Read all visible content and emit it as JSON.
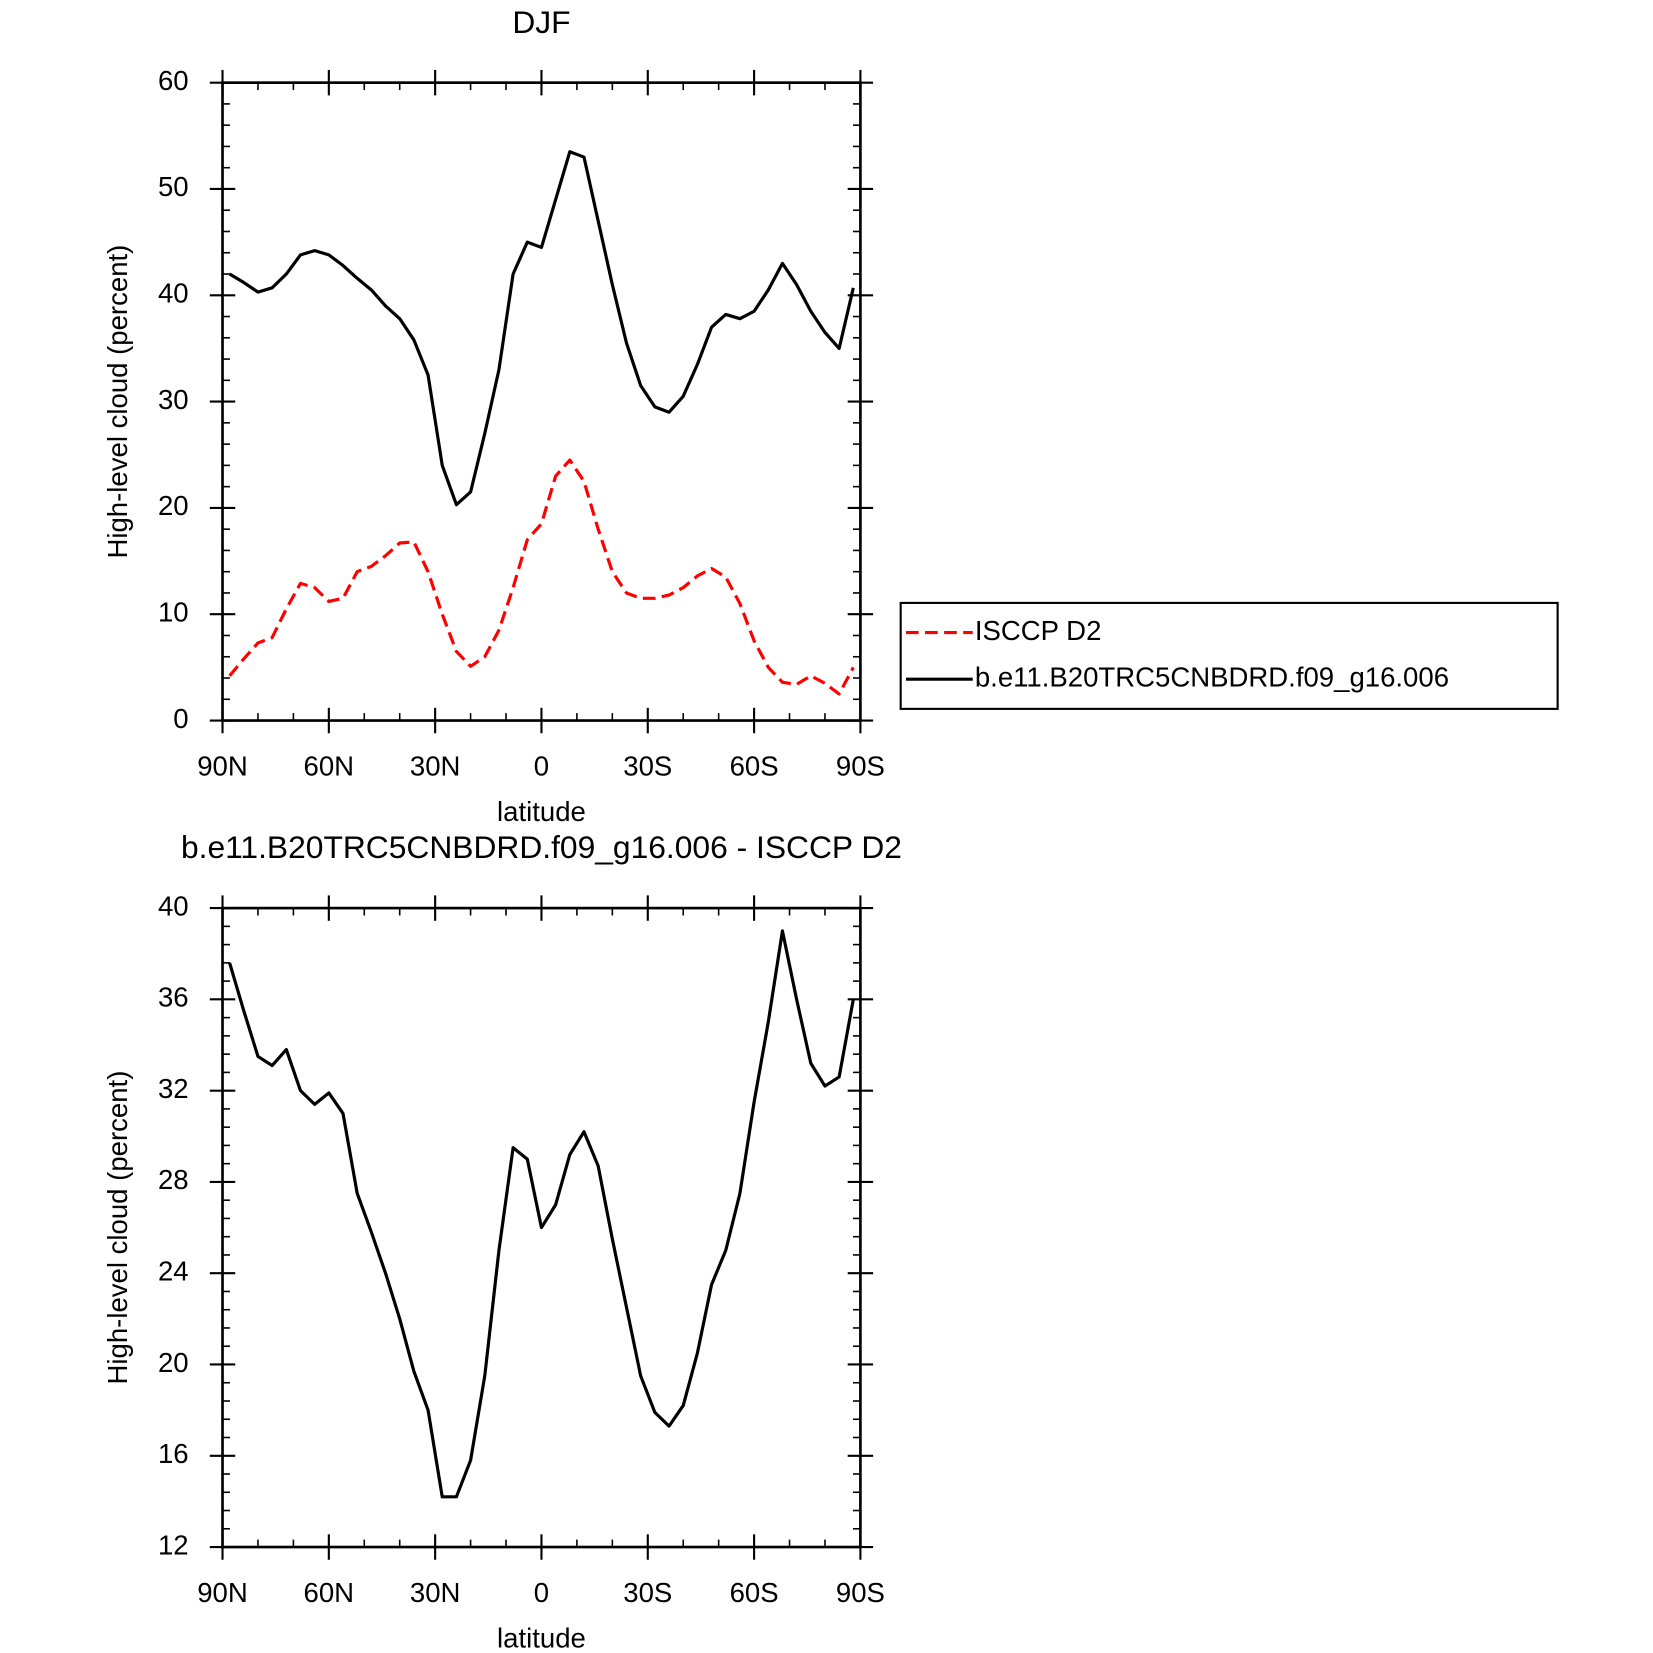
{
  "chart_data": [
    {
      "type": "line",
      "title": "DJF",
      "xlabel": "latitude",
      "ylabel": "High-level cloud (percent)",
      "x": [
        88,
        84,
        80,
        76,
        72,
        68,
        64,
        60,
        56,
        52,
        48,
        44,
        40,
        36,
        32,
        28,
        24,
        20,
        16,
        12,
        8,
        4,
        0,
        -4,
        -8,
        -12,
        -16,
        -20,
        -24,
        -28,
        -32,
        -36,
        -40,
        -44,
        -48,
        -52,
        -56,
        -60,
        -64,
        -68,
        -72,
        -76,
        -80,
        -84,
        -88
      ],
      "series": [
        {
          "name": "ISCCP D2",
          "color": "#ff0000",
          "dashed": true,
          "values": [
            4.2,
            5.8,
            7.3,
            7.8,
            10.5,
            12.9,
            12.5,
            11.2,
            11.5,
            14,
            14.5,
            15.5,
            16.7,
            16.8,
            14,
            10,
            6.5,
            5.1,
            6,
            8.5,
            12.5,
            17,
            18.5,
            23,
            24.5,
            22.5,
            18,
            14,
            12,
            11.5,
            11.5,
            11.8,
            12.5,
            13.6,
            14.3,
            13.5,
            11,
            7.5,
            5,
            3.6,
            3.4,
            4.2,
            3.5,
            2.5,
            5
          ]
        },
        {
          "name": "b.e11.B20TRC5CNBDRD.f09_g16.006",
          "color": "#000000",
          "dashed": false,
          "values": [
            42,
            41.2,
            40.3,
            40.7,
            42,
            43.8,
            44.2,
            43.8,
            42.8,
            41.6,
            40.5,
            39,
            37.8,
            35.8,
            32.5,
            24,
            20.3,
            21.5,
            27,
            33,
            42,
            45,
            44.5,
            49,
            53.5,
            53,
            47,
            41,
            35.5,
            31.5,
            29.5,
            29,
            30.5,
            33.5,
            37,
            38.2,
            37.8,
            38.5,
            40.5,
            43,
            41,
            38.5,
            36.5,
            35,
            40.7
          ]
        }
      ],
      "xlim": [
        90,
        -90
      ],
      "xticks": [
        {
          "value": 90,
          "label": "90N"
        },
        {
          "value": 60,
          "label": "60N"
        },
        {
          "value": 30,
          "label": "30N"
        },
        0,
        {
          "value": -30,
          "label": "30S"
        },
        {
          "value": -60,
          "label": "60S"
        },
        {
          "value": -90,
          "label": "90S"
        }
      ],
      "ylim": [
        0,
        60
      ],
      "yticks": [
        0,
        10,
        20,
        30,
        40,
        50,
        60
      ],
      "legend": "right"
    },
    {
      "type": "line",
      "title": "b.e11.B20TRC5CNBDRD.f09_g16.006 - ISCCP D2",
      "xlabel": "latitude",
      "ylabel": "High-level cloud (percent)",
      "x": [
        88,
        84,
        80,
        76,
        72,
        68,
        64,
        60,
        56,
        52,
        48,
        44,
        40,
        36,
        32,
        28,
        24,
        20,
        16,
        12,
        8,
        4,
        0,
        -4,
        -8,
        -12,
        -16,
        -20,
        -24,
        -28,
        -32,
        -36,
        -40,
        -44,
        -48,
        -52,
        -56,
        -60,
        -64,
        -68,
        -72,
        -76,
        -80,
        -84,
        -88
      ],
      "series": [
        {
          "color": "#000000",
          "dashed": false,
          "values": [
            37.6,
            35.5,
            33.5,
            33.1,
            33.8,
            32,
            31.4,
            31.9,
            31,
            27.5,
            25.8,
            24,
            22,
            19.7,
            18,
            14.2,
            14.2,
            15.8,
            19.5,
            25,
            29.5,
            29,
            26,
            27,
            29.2,
            30.2,
            28.7,
            25.5,
            22.5,
            19.5,
            17.9,
            17.3,
            18.2,
            20.5,
            23.5,
            25,
            27.5,
            31.5,
            35,
            39,
            36,
            33.2,
            32.2,
            32.6,
            36
          ]
        }
      ],
      "xlim": [
        90,
        -90
      ],
      "xticks": [
        {
          "value": 90,
          "label": "90N"
        },
        {
          "value": 60,
          "label": "60N"
        },
        {
          "value": 30,
          "label": "30N"
        },
        0,
        {
          "value": -30,
          "label": "30S"
        },
        {
          "value": -60,
          "label": "60S"
        },
        {
          "value": -90,
          "label": "90S"
        }
      ],
      "ylim": [
        12,
        40
      ],
      "yticks": [
        12,
        16,
        20,
        24,
        28,
        32,
        36,
        40
      ]
    }
  ]
}
